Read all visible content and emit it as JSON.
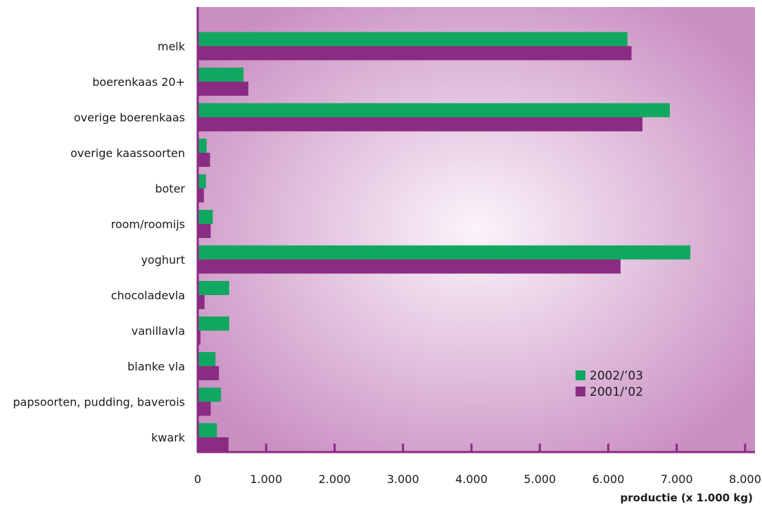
{
  "chart_data": {
    "type": "bar",
    "orientation": "horizontal",
    "categories": [
      "melk",
      "boerenkaas 20+",
      "overige boerenkaas",
      "overige kaassoorten",
      "boter",
      "room/roomijs",
      "yoghurt",
      "chocoladevla",
      "vanillavla",
      "blanke vla",
      "papsoorten, pudding, baverois",
      "kwark"
    ],
    "series": [
      {
        "name": "2002/’03",
        "color": "#10a860",
        "values": [
          6280,
          670,
          6900,
          130,
          120,
          220,
          7200,
          460,
          460,
          260,
          340,
          280
        ]
      },
      {
        "name": "2001/’02",
        "color": "#8b2c82",
        "values": [
          6340,
          740,
          6500,
          180,
          90,
          190,
          6180,
          100,
          40,
          310,
          190,
          450
        ]
      }
    ],
    "xlabel": "productie (x 1.000 kg)",
    "xlim": [
      0,
      8000
    ],
    "x_ticks": [
      0,
      1000,
      2000,
      3000,
      4000,
      5000,
      6000,
      7000,
      8000
    ],
    "x_tick_labels": [
      "0",
      "1.000",
      "2.000",
      "3.000",
      "4.000",
      "5.000",
      "6.000",
      "7.000",
      "8.000"
    ],
    "legend_position": "lower-right",
    "grid": false,
    "background": {
      "center": "#fbf4fa",
      "edge": "#c98ec2"
    },
    "axis_color": "#8b2c82"
  }
}
